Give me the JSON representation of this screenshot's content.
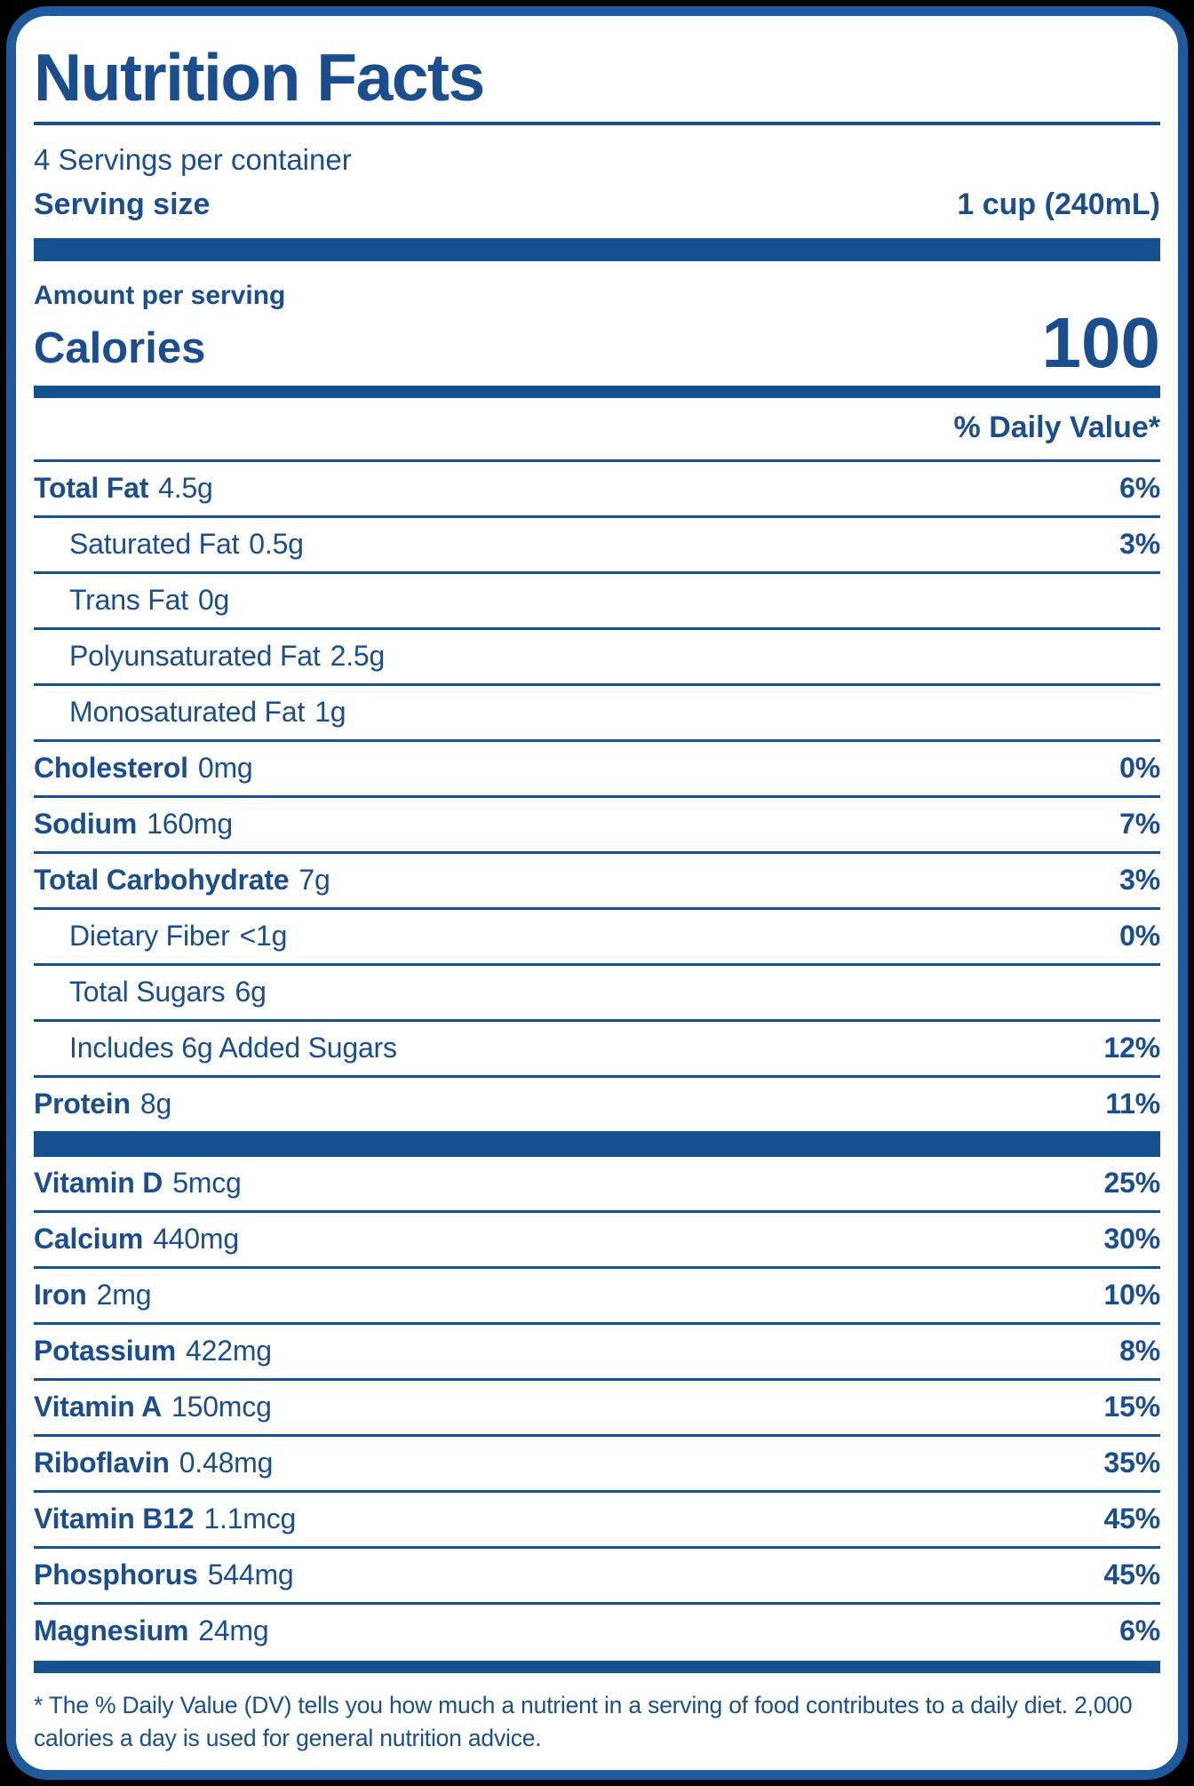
{
  "label": {
    "title": "Nutrition Facts",
    "servings_per_container": "4 Servings per container",
    "serving_size_label": "Serving size",
    "serving_size_value": "1 cup (240mL)",
    "amount_per_serving": "Amount per serving",
    "calories_label": "Calories",
    "calories_value": "100",
    "daily_value_header": "% Daily Value*",
    "nutrients": [
      {
        "name": "Total Fat",
        "amount": "4.5g",
        "dv": "6%",
        "bold": true,
        "indent": 0
      },
      {
        "name": "Saturated Fat",
        "amount": "0.5g",
        "dv": "3%",
        "bold": false,
        "indent": 1
      },
      {
        "name": "Trans Fat",
        "amount": "0g",
        "dv": "",
        "bold": false,
        "indent": 1
      },
      {
        "name": "Polyunsaturated Fat",
        "amount": "2.5g",
        "dv": "",
        "bold": false,
        "indent": 1
      },
      {
        "name": "Monosaturated Fat",
        "amount": "1g",
        "dv": "",
        "bold": false,
        "indent": 1
      },
      {
        "name": "Cholesterol",
        "amount": "0mg",
        "dv": "0%",
        "bold": true,
        "indent": 0
      },
      {
        "name": "Sodium",
        "amount": "160mg",
        "dv": "7%",
        "bold": true,
        "indent": 0
      },
      {
        "name": "Total Carbohydrate",
        "amount": "7g",
        "dv": "3%",
        "bold": true,
        "indent": 0
      },
      {
        "name": "Dietary Fiber",
        "amount": "<1g",
        "dv": "0%",
        "bold": false,
        "indent": 1
      },
      {
        "name": "Total Sugars",
        "amount": "6g",
        "dv": "",
        "bold": false,
        "indent": 1
      },
      {
        "name": "Includes 6g Added Sugars",
        "amount": "",
        "dv": "12%",
        "bold": false,
        "indent": 1
      },
      {
        "name": "Protein",
        "amount": "8g",
        "dv": "11%",
        "bold": true,
        "indent": 0
      }
    ],
    "micronutrients": [
      {
        "name": "Vitamin D",
        "amount": "5mcg",
        "dv": "25%"
      },
      {
        "name": "Calcium",
        "amount": "440mg",
        "dv": "30%"
      },
      {
        "name": "Iron",
        "amount": "2mg",
        "dv": "10%"
      },
      {
        "name": "Potassium",
        "amount": "422mg",
        "dv": "8%"
      },
      {
        "name": "Vitamin A",
        "amount": "150mcg",
        "dv": "15%"
      },
      {
        "name": "Riboflavin",
        "amount": "0.48mg",
        "dv": "35%"
      },
      {
        "name": "Vitamin B12",
        "amount": "1.1mcg",
        "dv": "45%"
      },
      {
        "name": "Phosphorus",
        "amount": "544mg",
        "dv": "45%"
      },
      {
        "name": "Magnesium",
        "amount": "24mg",
        "dv": "6%"
      }
    ],
    "footnote": "* The % Daily Value (DV) tells you how much a nutrient in a serving of food contributes to a daily diet. 2,000 calories a day is used for general nutrition advice.",
    "colors": {
      "text": "#1b4e8f",
      "bar": "#15518e",
      "border": "#1d5a9e",
      "background": "#ffffff"
    }
  }
}
